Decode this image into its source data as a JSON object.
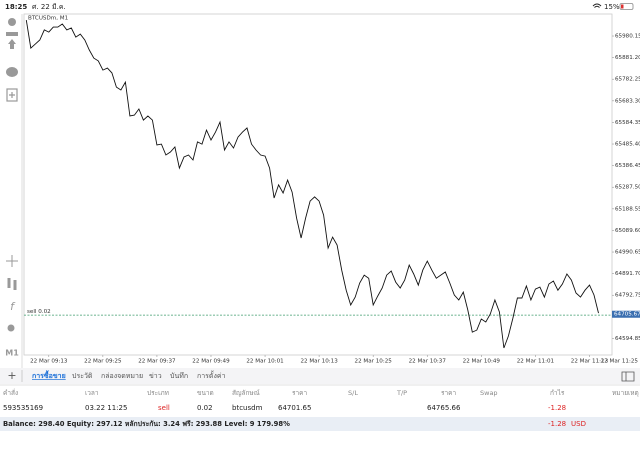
{
  "status_bar": {
    "time": "18:25",
    "date": "ศ. 22 มี.ค.",
    "battery": "15%"
  },
  "chart_data": {
    "type": "line",
    "title": "BTCUSDm, M1",
    "color": "#111111",
    "values": [
      66053,
      65925,
      65943,
      65962,
      66008,
      65998,
      66021,
      66021,
      66035,
      66008,
      66017,
      65975,
      65989,
      65962,
      65916,
      65879,
      65866,
      65824,
      65833,
      65811,
      65746,
      65733,
      65769,
      65614,
      65618,
      65646,
      65595,
      65614,
      65595,
      65481,
      65485,
      65435,
      65449,
      65472,
      65375,
      65426,
      65435,
      65412,
      65495,
      65485,
      65549,
      65504,
      65540,
      65586,
      65458,
      65495,
      65467,
      65517,
      65540,
      65559,
      65485,
      65458,
      65435,
      65430,
      65375,
      65238,
      65298,
      65261,
      65320,
      65265,
      65146,
      65055,
      65146,
      65224,
      65243,
      65224,
      65160,
      65009,
      65059,
      65023,
      64908,
      64816,
      64748,
      64784,
      64849,
      64885,
      64871,
      64748,
      64789,
      64826,
      64885,
      64904,
      64853,
      64826,
      64862,
      64931,
      64890,
      64839,
      64908,
      64949,
      64908,
      64871,
      64885,
      64899,
      64849,
      64794,
      64771,
      64807,
      64725,
      64624,
      64633,
      64684,
      64670,
      64707,
      64771,
      64716,
      64551,
      64606,
      64688,
      64780,
      64780,
      64835,
      64771,
      64821,
      64830,
      64784,
      64844,
      64858,
      64816,
      64844,
      64890,
      64862,
      64803,
      64784,
      64816,
      64839,
      64794,
      64711
    ],
    "xlim": [
      -0.5,
      130
    ],
    "xticks": [
      {
        "value": 5,
        "label": "22 Mar 09:13"
      },
      {
        "value": 17,
        "label": "22 Mar 09:25"
      },
      {
        "value": 29,
        "label": "22 Mar 09:37"
      },
      {
        "value": 41,
        "label": "22 Mar 09:49"
      },
      {
        "value": 53,
        "label": "22 Mar 10:01"
      },
      {
        "value": 65,
        "label": "22 Mar 10:13"
      },
      {
        "value": 77,
        "label": "22 Mar 10:25"
      },
      {
        "value": 89,
        "label": "22 Mar 10:37"
      },
      {
        "value": 101,
        "label": "22 Mar 10:49"
      },
      {
        "value": 113,
        "label": "22 Mar 11:01"
      },
      {
        "value": 125,
        "label": "22 Mar 11:13"
      },
      {
        "value": 137,
        "label": "22 Mar 11:25"
      }
    ],
    "ylim": [
      64519,
      66081
    ],
    "yticks": [
      65980.15,
      {
        "value": 65881.2,
        "label": "65881.20"
      },
      65782.25,
      {
        "value": 65683.3,
        "label": "65683.30"
      },
      65584.35,
      {
        "value": 65485.4,
        "label": "65485.40"
      },
      65386.45,
      {
        "value": 65287.5,
        "label": "65287.50"
      },
      65188.55,
      {
        "value": 65089.6,
        "label": "65089.60"
      },
      64990.65,
      {
        "value": 64891.7,
        "label": "64891.70"
      },
      64792.75,
      64594.85
    ],
    "current_price": 64705.67,
    "order_line": {
      "label": "sell 0.02",
      "value": 64701.65,
      "color": "#3a9a6a"
    }
  },
  "toolbar": {
    "tabs": [
      "การซื้อขาย",
      "ประวัติ",
      "กล่องจดหมาย",
      "ข่าว",
      "บันทึก",
      "การตั้งค่า"
    ],
    "active": 0
  },
  "table": {
    "headers": [
      "คำสั่ง",
      "เวลา",
      "ประเภท",
      "ขนาด",
      "สัญลักษณ์",
      "ราคา",
      "S/L",
      "T/P",
      "ราคา",
      "Swap",
      "กำไร",
      "หมายเหตุ"
    ],
    "row": {
      "order": "593535169",
      "time": "03.22 11:25",
      "type": "sell",
      "volume": "0.02",
      "symbol": "btcusdm",
      "price": "64701.65",
      "current_price": "64765.66",
      "profit": "-1.28"
    }
  },
  "footer": {
    "summary": "Balance: 298.40 Equity: 297.12 หลักประกัน: 3.24 ฟรี: 293.88 Level: 9 179.98%",
    "profit": "-1.28",
    "currency": "USD"
  },
  "left_tools": {
    "timeframe": "M1"
  }
}
